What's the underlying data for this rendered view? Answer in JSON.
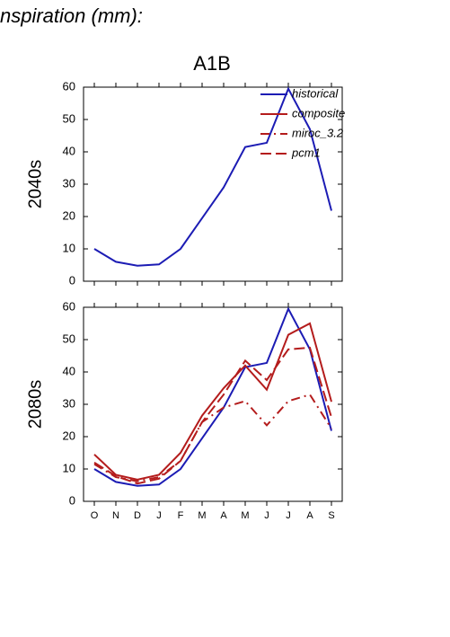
{
  "title": "nspiration (mm):",
  "chart_data": [
    {
      "type": "line",
      "title": "A1B",
      "ylabel": "2040s",
      "legend": "upper right",
      "categories": [
        null,
        null,
        null,
        null,
        null,
        null,
        null,
        null,
        null,
        null,
        null,
        null
      ],
      "ylim": [
        0,
        60
      ],
      "yticks": [
        0,
        10,
        20,
        30,
        40,
        50,
        60
      ],
      "series": [
        {
          "name": "historical",
          "color": "#1c1cb4",
          "linestyle": "solid",
          "values": [
            10,
            6,
            4.8,
            5.2,
            10,
            19.5,
            29,
            41.5,
            42.8,
            59.5,
            47,
            21.8
          ]
        }
      ]
    },
    {
      "type": "line",
      "ylabel": "2080s",
      "categories": [
        "O",
        "N",
        "D",
        "J",
        "F",
        "M",
        "A",
        "M",
        "J",
        "J",
        "A",
        "S"
      ],
      "ylim": [
        0,
        60
      ],
      "yticks": [
        0,
        10,
        20,
        30,
        40,
        50,
        60
      ],
      "series": [
        {
          "name": "historical",
          "color": "#1c1cb4",
          "linestyle": "solid",
          "values": [
            10,
            6,
            4.8,
            5.2,
            10,
            19.5,
            29,
            41.5,
            42.8,
            59.5,
            47,
            21.8
          ]
        },
        {
          "name": "composite",
          "color": "#b41c1c",
          "linestyle": "solid",
          "values": [
            14.5,
            8.2,
            6.7,
            8.2,
            15,
            26.5,
            35,
            42,
            34.5,
            51.5,
            55,
            30.8
          ]
        },
        {
          "name": "miroc_3.2",
          "color": "#b41c1c",
          "linestyle": "dashdot",
          "values": [
            11.5,
            7.5,
            6.2,
            7.5,
            12.5,
            24.5,
            29,
            31,
            23.5,
            31,
            33,
            22.5
          ]
        },
        {
          "name": "pcm1",
          "color": "#b41c1c",
          "linestyle": "dashed",
          "values": [
            12,
            7.8,
            5.5,
            7,
            12.5,
            24.5,
            33,
            43.5,
            37.5,
            47,
            47.5,
            26
          ]
        }
      ]
    }
  ]
}
